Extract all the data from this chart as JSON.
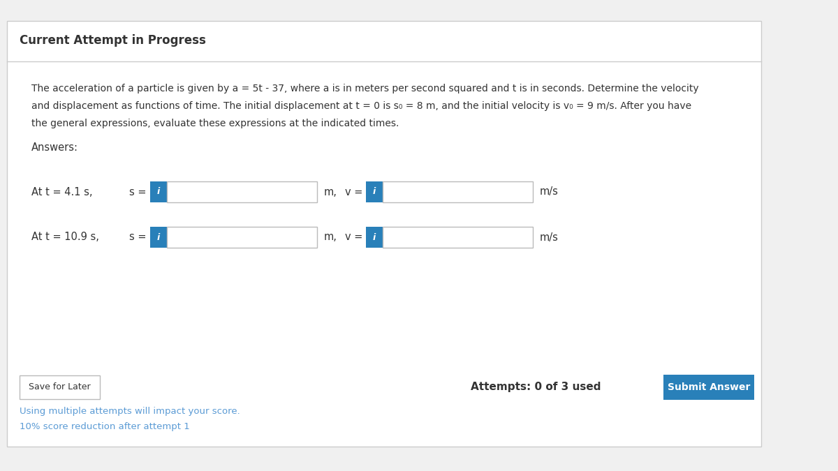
{
  "bg_color": "#f0f0f0",
  "card_color": "#ffffff",
  "header_text": "Current Attempt in Progress",
  "body_line1": "The acceleration of a particle is given by a = 5t - 37, where a is in meters per second squared and t is in seconds. Determine the velocity",
  "body_line2": "and displacement as functions of time. The initial displacement at t = 0 is s₀ = 8 m, and the initial velocity is v₀ = 9 m/s. After you have",
  "body_line3": "the general expressions, evaluate these expressions at the indicated times.",
  "answers_label": "Answers:",
  "row1_time": "At t = 4.1 s,",
  "row2_time": "At t = 10.9 s,",
  "s_eq": "s =",
  "m_unit": "m,",
  "v_eq": "v =",
  "ms_unit": "m/s",
  "info_color": "#2980b9",
  "info_text": "i",
  "input_border_color": "#bbbbbb",
  "input_fill_color": "#ffffff",
  "save_btn_text": "Save for Later",
  "save_btn_border": "#bbbbbb",
  "attempts_text": "Attempts: 0 of 3 used",
  "submit_btn_text": "Submit Answer",
  "submit_btn_color": "#2980b9",
  "submit_btn_text_color": "#ffffff",
  "footer_line1": "Using multiple attempts will impact your score.",
  "footer_line2": "10% score reduction after attempt 1",
  "footer_color": "#5b9bd5",
  "border_color": "#cccccc",
  "text_color": "#333333",
  "dim_text_color": "#555555"
}
